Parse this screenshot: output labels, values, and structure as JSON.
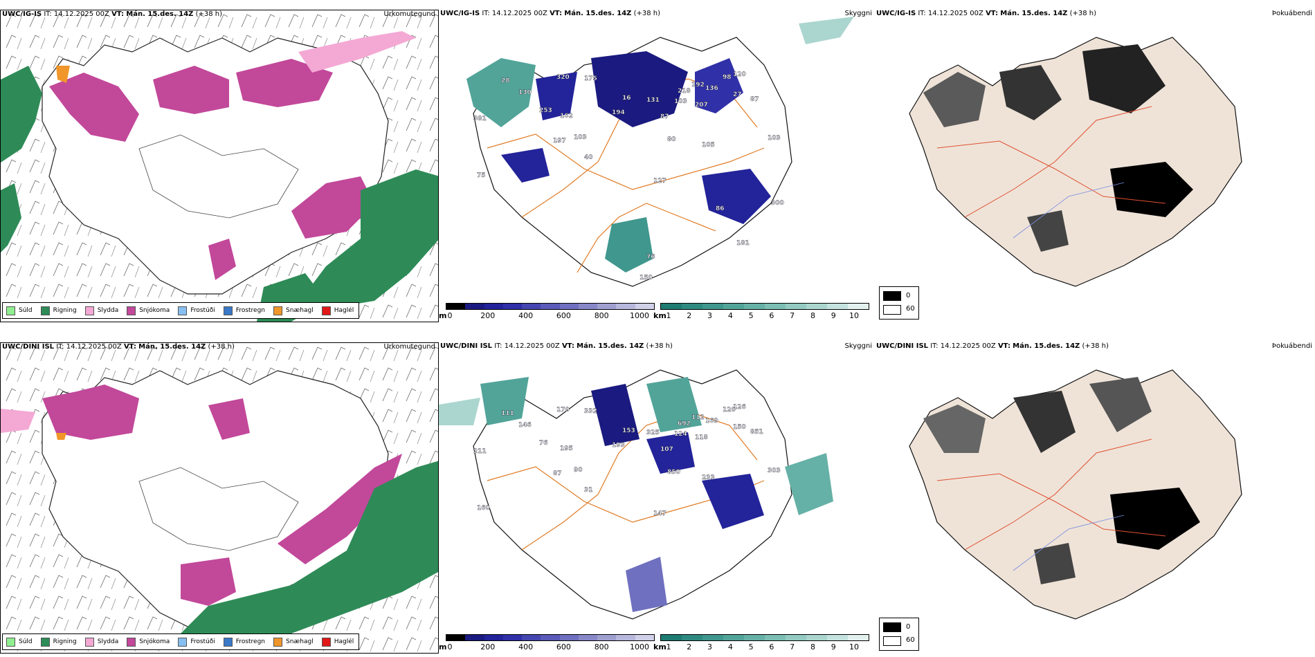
{
  "rows": [
    {
      "model": "UWC/IG-IS",
      "it_label": "IT:",
      "it_value": "14.12.2025 00Z",
      "vt_label": "VT:",
      "vt_value": "Mán. 15.des. 14Z",
      "lead": "(+38 h)",
      "precip_title": "Úrkomutegund",
      "visibility_title": "Skyggni",
      "cloud_title": "Þokuábendi",
      "cloud_min": "0",
      "cloud_max": "60",
      "vis_labels": [
        {
          "text": "28"
        },
        {
          "text": "130"
        },
        {
          "text": "320"
        },
        {
          "text": "175"
        },
        {
          "text": "253"
        },
        {
          "text": "162"
        },
        {
          "text": "381"
        },
        {
          "text": "103"
        },
        {
          "text": "197"
        },
        {
          "text": "40"
        },
        {
          "text": "75"
        },
        {
          "text": "16"
        },
        {
          "text": "194"
        },
        {
          "text": "131"
        },
        {
          "text": "87"
        },
        {
          "text": "103"
        },
        {
          "text": "218"
        },
        {
          "text": "192"
        },
        {
          "text": "136"
        },
        {
          "text": "207"
        },
        {
          "text": "98"
        },
        {
          "text": "120"
        },
        {
          "text": "27"
        },
        {
          "text": "87"
        },
        {
          "text": "80"
        },
        {
          "text": "105"
        },
        {
          "text": "103"
        },
        {
          "text": "127"
        },
        {
          "text": "86"
        },
        {
          "text": "300"
        },
        {
          "text": "181"
        },
        {
          "text": "76"
        },
        {
          "text": "150"
        }
      ]
    },
    {
      "model": "UWC/DINI ISL",
      "it_label": "IT:",
      "it_value": "14.12.2025 00Z",
      "vt_label": "VT:",
      "vt_value": "Mán. 15.des. 14Z",
      "lead": "(+38 h)",
      "precip_title": "Úrkomutegund",
      "visibility_title": "Skyggni",
      "cloud_title": "Þokuábendi",
      "cloud_min": "0",
      "cloud_max": "60",
      "vis_labels": [
        {
          "text": "111"
        },
        {
          "text": "146"
        },
        {
          "text": "170"
        },
        {
          "text": "332"
        },
        {
          "text": "76"
        },
        {
          "text": "195"
        },
        {
          "text": "211"
        },
        {
          "text": "90"
        },
        {
          "text": "87"
        },
        {
          "text": "31"
        },
        {
          "text": "160"
        },
        {
          "text": "153"
        },
        {
          "text": "193"
        },
        {
          "text": "325"
        },
        {
          "text": "107"
        },
        {
          "text": "124"
        },
        {
          "text": "692"
        },
        {
          "text": "112"
        },
        {
          "text": "169"
        },
        {
          "text": "118"
        },
        {
          "text": "120"
        },
        {
          "text": "126"
        },
        {
          "text": "150"
        },
        {
          "text": "851"
        },
        {
          "text": "850"
        },
        {
          "text": "233"
        },
        {
          "text": "303"
        },
        {
          "text": "147"
        }
      ]
    }
  ],
  "precip_legend": [
    {
      "label": "Súld",
      "color": "#90ee90"
    },
    {
      "label": "Rigning",
      "color": "#2e8b57"
    },
    {
      "label": "Slydda",
      "color": "#f4a8d4"
    },
    {
      "label": "Snjókoma",
      "color": "#c2489a"
    },
    {
      "label": "Frostúði",
      "color": "#87bff0"
    },
    {
      "label": "Frostregn",
      "color": "#3a78c8"
    },
    {
      "label": "Snæhagl",
      "color": "#f0962a"
    },
    {
      "label": "Haglél",
      "color": "#e01818"
    }
  ],
  "height_scale": {
    "unit": "m",
    "ticks": [
      "0",
      "200",
      "400",
      "600",
      "800",
      "1000"
    ],
    "colors": [
      "#000000",
      "#1a1a80",
      "#23239a",
      "#3030a8",
      "#4646b0",
      "#5a5ab8",
      "#7070c0",
      "#8888c8",
      "#a0a0d0",
      "#b8b8dc",
      "#d0d0e8"
    ]
  },
  "visibility_scale": {
    "unit": "km",
    "ticks": [
      "1",
      "2",
      "3",
      "4",
      "5",
      "6",
      "7",
      "8",
      "9",
      "10"
    ],
    "colors": [
      "#1e7b72",
      "#2e8a80",
      "#3f978d",
      "#52a499",
      "#66b1a7",
      "#7cbeb4",
      "#93cac2",
      "#abd6cf",
      "#c5e3de",
      "#e3f1ee"
    ]
  }
}
